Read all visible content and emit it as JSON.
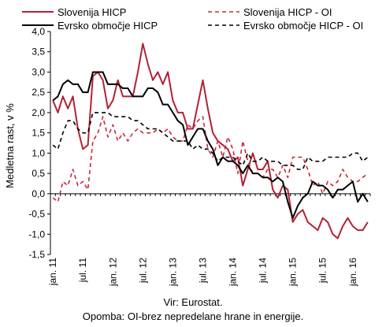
{
  "chart_data": {
    "type": "line",
    "ylabel": "Medletna rast, v %",
    "ylim": [
      -1.5,
      4.0
    ],
    "yticks": [
      "4,0",
      "3,5",
      "3,0",
      "2,5",
      "2,0",
      "1,5",
      "1,0",
      "0,5",
      "0,0",
      "-0,5",
      "-1,0",
      "-1,5"
    ],
    "x_tick_labels": [
      "jan. 11",
      "jul. 11",
      "jan. 12",
      "jul. 12",
      "jan. 13",
      "jul. 13",
      "jan. 14",
      "jul. 14",
      "jan. 15",
      "jul. 15",
      "jan. 16"
    ],
    "x_start": "2011-01",
    "grid": false,
    "legend_position": "top",
    "series": [
      {
        "name": "Slovenija HICP",
        "color": "#b22234",
        "dash": "solid",
        "values": [
          2.3,
          2.0,
          2.4,
          2.1,
          2.4,
          1.6,
          1.1,
          1.2,
          2.9,
          3.0,
          2.8,
          2.1,
          2.3,
          2.8,
          2.4,
          2.4,
          2.4,
          3.0,
          3.7,
          3.2,
          2.8,
          3.0,
          2.7,
          3.0,
          2.3,
          2.0,
          2.0,
          1.6,
          1.6,
          2.2,
          2.8,
          2.1,
          1.5,
          1.3,
          1.2,
          1.1,
          0.8,
          0.9,
          0.2,
          0.6,
          1.0,
          0.6,
          0.6,
          0.8,
          0.1,
          -0.1,
          0.2,
          0.1,
          -0.7,
          -0.5,
          -0.4,
          -0.7,
          -0.8,
          -0.9,
          -0.6,
          -0.7,
          -1.0,
          -1.1,
          -0.8,
          -0.6,
          -0.8,
          -0.9,
          -0.9,
          -0.7
        ]
      },
      {
        "name": "Slovenija HICP - OI",
        "color": "#c8283c",
        "dash": "dashed",
        "values": [
          -0.1,
          -0.2,
          0.3,
          0.2,
          0.6,
          0.2,
          0.3,
          0.1,
          1.3,
          1.5,
          1.9,
          1.4,
          1.7,
          1.3,
          1.5,
          1.3,
          1.5,
          1.6,
          1.5,
          1.5,
          1.5,
          1.6,
          1.5,
          1.6,
          1.4,
          1.3,
          1.3,
          1.7,
          1.6,
          1.8,
          1.9,
          1.1,
          0.9,
          1.3,
          0.9,
          1.4,
          1.1,
          0.5,
          1.3,
          0.8,
          0.5,
          0.5,
          0.4,
          0.6,
          0.6,
          0.4,
          0.7,
          0.4,
          0.9,
          0.9,
          0.9,
          0.6,
          0.2,
          0.3,
          0.0,
          0.3,
          0.2,
          0.3,
          0.6,
          0.4,
          0.3,
          0.3,
          0.4,
          0.5
        ]
      },
      {
        "name": "Evrsko območje HICP",
        "color": "#000000",
        "dash": "solid",
        "values": [
          2.3,
          2.4,
          2.7,
          2.8,
          2.7,
          2.7,
          2.5,
          2.5,
          3.0,
          3.0,
          3.0,
          2.7,
          2.7,
          2.7,
          2.6,
          2.6,
          2.4,
          2.4,
          2.4,
          2.6,
          2.6,
          2.5,
          2.2,
          2.2,
          2.0,
          1.8,
          1.7,
          1.2,
          1.4,
          1.6,
          1.6,
          1.3,
          1.1,
          0.7,
          0.9,
          0.8,
          0.8,
          0.7,
          0.5,
          0.7,
          0.5,
          0.5,
          0.4,
          0.4,
          0.3,
          0.4,
          0.3,
          -0.2,
          -0.6,
          -0.3,
          -0.1,
          0.0,
          0.3,
          0.2,
          0.2,
          0.1,
          -0.1,
          0.1,
          0.1,
          0.2,
          0.3,
          -0.2,
          0.0,
          -0.2
        ]
      },
      {
        "name": "Evrsko območje HICP - OI",
        "color": "#000000",
        "dash": "dashed",
        "values": [
          1.2,
          1.1,
          1.5,
          1.8,
          1.8,
          1.6,
          1.5,
          1.5,
          2.0,
          2.0,
          2.0,
          2.0,
          1.9,
          1.9,
          1.9,
          1.9,
          1.8,
          1.8,
          1.7,
          1.6,
          1.6,
          1.6,
          1.5,
          1.4,
          1.3,
          1.3,
          1.3,
          1.3,
          1.1,
          1.2,
          1.1,
          1.1,
          1.0,
          0.8,
          0.9,
          0.9,
          0.9,
          0.8,
          0.7,
          1.0,
          0.8,
          0.8,
          0.9,
          0.8,
          0.8,
          0.8,
          0.7,
          0.7,
          0.7,
          0.6,
          0.6,
          0.9,
          0.8,
          0.8,
          0.8,
          0.9,
          0.9,
          0.9,
          0.9,
          0.9,
          1.0,
          1.0,
          0.8,
          0.9
        ]
      }
    ]
  },
  "source_text": "Vir: Eurostat.",
  "footnote_text": "Opomba: OI-brez nepredelane hrane in energije."
}
